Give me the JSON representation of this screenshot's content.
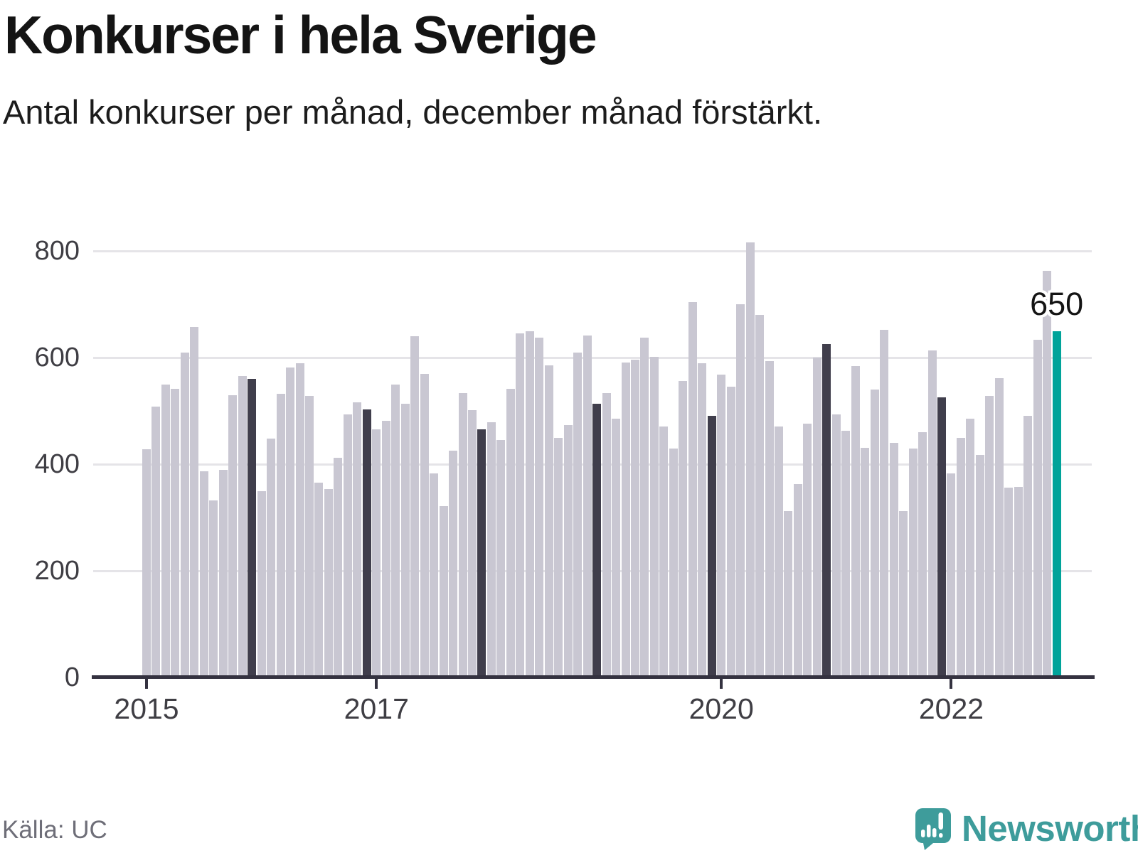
{
  "header": {
    "title": "Konkurser i hela Sverige",
    "subtitle": "Antal konkurser per månad, december månad förstärkt."
  },
  "footer": {
    "source": "Källa: UC",
    "brand": "Newsworthy"
  },
  "colors": {
    "bar": "#c9c7d2",
    "december_bar": "#403e4c",
    "highlight_bar": "#00a39a",
    "grid": "#e5e4e8",
    "axis": "#343240",
    "brand_teal": "#3e9c9b"
  },
  "chart_data": {
    "type": "bar",
    "title": "Konkurser i hela Sverige",
    "subtitle": "Antal konkurser per månad, december månad förstärkt.",
    "x": [
      "2015-01",
      "2015-02",
      "2015-03",
      "2015-04",
      "2015-05",
      "2015-06",
      "2015-07",
      "2015-08",
      "2015-09",
      "2015-10",
      "2015-11",
      "2015-12",
      "2016-01",
      "2016-02",
      "2016-03",
      "2016-04",
      "2016-05",
      "2016-06",
      "2016-07",
      "2016-08",
      "2016-09",
      "2016-10",
      "2016-11",
      "2016-12",
      "2017-01",
      "2017-02",
      "2017-03",
      "2017-04",
      "2017-05",
      "2017-06",
      "2017-07",
      "2017-08",
      "2017-09",
      "2017-10",
      "2017-11",
      "2017-12",
      "2018-01",
      "2018-02",
      "2018-03",
      "2018-04",
      "2018-05",
      "2018-06",
      "2018-07",
      "2018-08",
      "2018-09",
      "2018-10",
      "2018-11",
      "2018-12",
      "2019-01",
      "2019-02",
      "2019-03",
      "2019-04",
      "2019-05",
      "2019-06",
      "2019-07",
      "2019-08",
      "2019-09",
      "2019-10",
      "2019-11",
      "2019-12",
      "2020-01",
      "2020-02",
      "2020-03",
      "2020-04",
      "2020-05",
      "2020-06",
      "2020-07",
      "2020-08",
      "2020-09",
      "2020-10",
      "2020-11",
      "2020-12",
      "2021-01",
      "2021-02",
      "2021-03",
      "2021-04",
      "2021-05",
      "2021-06",
      "2021-07",
      "2021-08",
      "2021-09",
      "2021-10",
      "2021-11",
      "2021-12",
      "2022-01",
      "2022-02",
      "2022-03",
      "2022-04",
      "2022-05",
      "2022-06",
      "2022-07",
      "2022-08",
      "2022-09",
      "2022-10",
      "2022-11",
      "2022-12"
    ],
    "values": [
      428,
      508,
      549,
      542,
      610,
      657,
      387,
      332,
      390,
      530,
      566,
      560,
      350,
      448,
      532,
      581,
      590,
      528,
      366,
      353,
      412,
      493,
      516,
      503,
      466,
      482,
      550,
      514,
      640,
      570,
      383,
      322,
      426,
      533,
      501,
      465,
      479,
      446,
      541,
      646,
      650,
      638,
      585,
      449,
      474,
      609,
      641,
      514,
      533,
      485,
      591,
      596,
      637,
      602,
      471,
      429,
      556,
      704,
      590,
      491,
      568,
      545,
      700,
      816,
      680,
      593,
      471,
      312,
      363,
      476,
      600,
      626,
      494,
      463,
      584,
      431,
      540,
      652,
      440,
      312,
      430,
      460,
      613,
      525,
      383,
      450,
      486,
      418,
      528,
      561,
      356,
      357,
      491,
      634,
      763,
      650
    ],
    "december_emphasis": true,
    "highlight_last": true,
    "grid": "horizontal",
    "ylim": [
      0,
      830
    ],
    "yticks": [
      0,
      200,
      400,
      600,
      800
    ],
    "xticks": [
      {
        "label": "2015",
        "month_index": 0
      },
      {
        "label": "2017",
        "month_index": 24
      },
      {
        "label": "2020",
        "month_index": 60
      },
      {
        "label": "2022",
        "month_index": 84
      }
    ],
    "annotation": {
      "month_index": 95,
      "text": "650"
    }
  }
}
